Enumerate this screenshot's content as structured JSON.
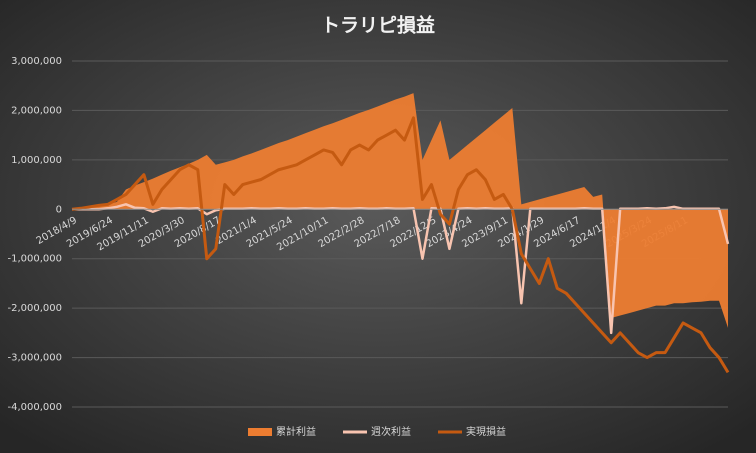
{
  "chart_data": {
    "type": "area-line",
    "title": "トラリピ損益",
    "categories": [
      "2018/4/9",
      null,
      null,
      null,
      "2019/6/24",
      null,
      null,
      null,
      "2019/11/11",
      null,
      null,
      null,
      "2020/3/30",
      null,
      null,
      null,
      "2020/8/17",
      null,
      null,
      null,
      "2021/1/4",
      null,
      null,
      null,
      "2021/5/24",
      null,
      null,
      null,
      "2021/10/11",
      null,
      null,
      null,
      "2022/2/28",
      null,
      null,
      null,
      "2022/7/18",
      null,
      null,
      null,
      "2022/12/5",
      null,
      null,
      null,
      "2023/4/24",
      null,
      null,
      null,
      "2023/9/11",
      null,
      null,
      null,
      "2024/1/29",
      null,
      null,
      null,
      "2024/6/17",
      null,
      null,
      null,
      "2024/11/4",
      null,
      null,
      null,
      "2025/3/24",
      null,
      null,
      null,
      "2025/8/11",
      null,
      null,
      null,
      null,
      null
    ],
    "series": [
      {
        "name": "累計利益",
        "kind": "area",
        "color": "#ed7d31",
        "values": [
          0,
          20000,
          40000,
          70000,
          100000,
          150000,
          400000,
          480000,
          550000,
          620000,
          700000,
          780000,
          850000,
          920000,
          1000000,
          1100000,
          900000,
          950000,
          1000000,
          1070000,
          1130000,
          1200000,
          1270000,
          1340000,
          1400000,
          1470000,
          1540000,
          1610000,
          1680000,
          1740000,
          1810000,
          1880000,
          1950000,
          2010000,
          2080000,
          2150000,
          2220000,
          2280000,
          2350000,
          1000000,
          1400000,
          1800000,
          1000000,
          1150000,
          1300000,
          1450000,
          1600000,
          1750000,
          1900000,
          2050000,
          100000,
          150000,
          200000,
          250000,
          300000,
          350000,
          400000,
          450000,
          250000,
          300000,
          -2200000,
          -2150000,
          -2100000,
          -2050000,
          -2000000,
          -1950000,
          -1950000,
          -1900000,
          -1900000,
          -1880000,
          -1870000,
          -1850000,
          -1850000,
          -2400000
        ]
      },
      {
        "name": "週次利益",
        "kind": "line",
        "color": "#f8c4b0",
        "values": [
          0,
          0,
          0,
          0,
          20000,
          50000,
          100000,
          30000,
          20000,
          -50000,
          20000,
          10000,
          20000,
          10000,
          20000,
          -100000,
          -20000,
          10000,
          10000,
          10000,
          20000,
          10000,
          10000,
          20000,
          10000,
          10000,
          20000,
          10000,
          10000,
          20000,
          10000,
          10000,
          20000,
          10000,
          10000,
          20000,
          10000,
          10000,
          20000,
          -1000000,
          20000,
          10000,
          -800000,
          10000,
          20000,
          10000,
          20000,
          10000,
          10000,
          20000,
          -1900000,
          10000,
          10000,
          10000,
          10000,
          10000,
          10000,
          20000,
          10000,
          10000,
          -2500000,
          10000,
          10000,
          10000,
          20000,
          10000,
          20000,
          50000,
          10000,
          10000,
          10000,
          10000,
          10000,
          -700000
        ]
      },
      {
        "name": "実現損益",
        "kind": "line",
        "color": "#c55a11",
        "values": [
          0,
          20000,
          50000,
          80000,
          100000,
          200000,
          300000,
          500000,
          700000,
          100000,
          400000,
          600000,
          800000,
          900000,
          800000,
          -1000000,
          -800000,
          500000,
          300000,
          500000,
          550000,
          600000,
          700000,
          800000,
          850000,
          900000,
          1000000,
          1100000,
          1200000,
          1150000,
          900000,
          1200000,
          1300000,
          1200000,
          1400000,
          1500000,
          1600000,
          1400000,
          1850000,
          200000,
          500000,
          -100000,
          -300000,
          400000,
          700000,
          800000,
          600000,
          200000,
          300000,
          0,
          -900000,
          -1200000,
          -1500000,
          -1000000,
          -1600000,
          -1700000,
          -1900000,
          -2100000,
          -2300000,
          -2500000,
          -2700000,
          -2500000,
          -2700000,
          -2900000,
          -3000000,
          -2900000,
          -2900000,
          -2600000,
          -2300000,
          -2400000,
          -2500000,
          -2800000,
          -3000000,
          -3300000
        ]
      }
    ],
    "ylim": [
      -4000000,
      3000000
    ],
    "yticks": [
      {
        "value": -4000000,
        "label": "-4,000,000"
      },
      {
        "value": -3000000,
        "label": "-3,000,000"
      },
      {
        "value": -2000000,
        "label": "-2,000,000"
      },
      {
        "value": -1000000,
        "label": "-1,000,000"
      },
      0,
      {
        "value": 1000000,
        "label": "1,000,000"
      },
      {
        "value": 2000000,
        "label": "2,000,000"
      },
      {
        "value": 3000000,
        "label": "3,000,000"
      }
    ],
    "grid": true
  }
}
